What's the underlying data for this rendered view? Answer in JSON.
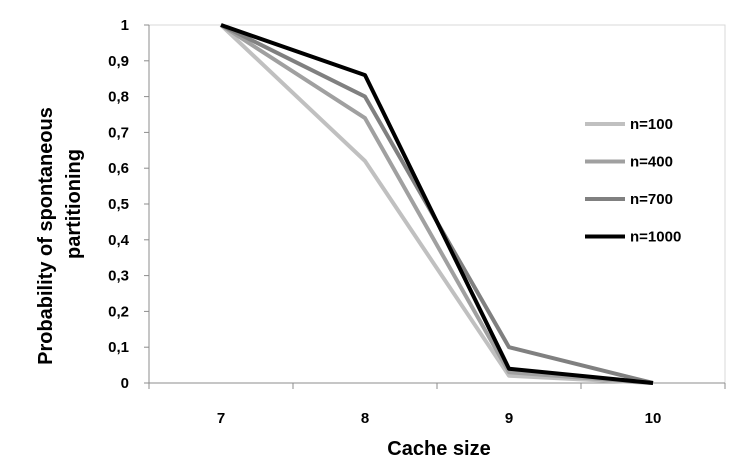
{
  "chart_data": {
    "type": "line",
    "title": "",
    "xlabel": "Cache size",
    "ylabel_lines": [
      "Probability of spontaneous",
      "partitioning"
    ],
    "x_categories": [
      "7",
      "8",
      "9",
      "10"
    ],
    "ylim": [
      0,
      1
    ],
    "y_ticks": [
      {
        "value": 0,
        "label": "0"
      },
      {
        "value": 0.1,
        "label": "0,1"
      },
      {
        "value": 0.2,
        "label": "0,2"
      },
      {
        "value": 0.3,
        "label": "0,3"
      },
      {
        "value": 0.4,
        "label": "0,4"
      },
      {
        "value": 0.5,
        "label": "0,5"
      },
      {
        "value": 0.6,
        "label": "0,6"
      },
      {
        "value": 0.7,
        "label": "0,7"
      },
      {
        "value": 0.8,
        "label": "0,8"
      },
      {
        "value": 0.9,
        "label": "0,9"
      },
      {
        "value": 1,
        "label": "1"
      }
    ],
    "grid": false,
    "legend_position": "right",
    "series": [
      {
        "name": "n=100",
        "color": "#c0c0c0",
        "values": [
          1.0,
          0.62,
          0.02,
          0.0
        ]
      },
      {
        "name": "n=400",
        "color": "#a0a0a0",
        "values": [
          1.0,
          0.74,
          0.03,
          0.0
        ]
      },
      {
        "name": "n=700",
        "color": "#808080",
        "values": [
          1.0,
          0.8,
          0.1,
          0.0
        ]
      },
      {
        "name": "n=1000",
        "color": "#000000",
        "values": [
          1.0,
          0.86,
          0.04,
          0.0
        ]
      }
    ]
  }
}
